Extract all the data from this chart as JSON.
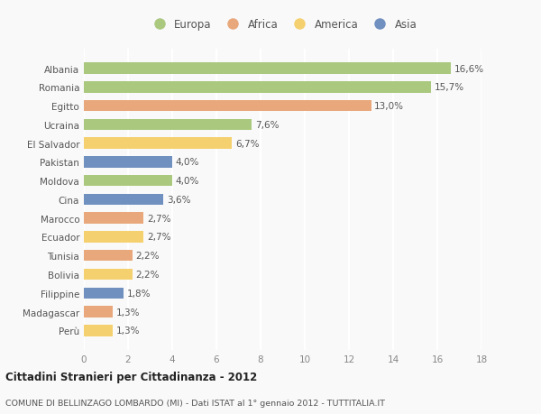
{
  "countries": [
    "Albania",
    "Romania",
    "Egitto",
    "Ucraina",
    "El Salvador",
    "Pakistan",
    "Moldova",
    "Cina",
    "Marocco",
    "Ecuador",
    "Tunisia",
    "Bolivia",
    "Filippine",
    "Madagascar",
    "Perù"
  ],
  "values": [
    16.6,
    15.7,
    13.0,
    7.6,
    6.7,
    4.0,
    4.0,
    3.6,
    2.7,
    2.7,
    2.2,
    2.2,
    1.8,
    1.3,
    1.3
  ],
  "labels": [
    "16,6%",
    "15,7%",
    "13,0%",
    "7,6%",
    "6,7%",
    "4,0%",
    "4,0%",
    "3,6%",
    "2,7%",
    "2,7%",
    "2,2%",
    "2,2%",
    "1,8%",
    "1,3%",
    "1,3%"
  ],
  "continents": [
    "Europa",
    "Europa",
    "Africa",
    "Europa",
    "America",
    "Asia",
    "Europa",
    "Asia",
    "Africa",
    "America",
    "Africa",
    "America",
    "Asia",
    "Africa",
    "America"
  ],
  "colors": {
    "Europa": "#aac97f",
    "Africa": "#e8a87c",
    "America": "#f5d06e",
    "Asia": "#7090c0"
  },
  "legend_order": [
    "Europa",
    "Africa",
    "America",
    "Asia"
  ],
  "title_bold": "Cittadini Stranieri per Cittadinanza - 2012",
  "subtitle": "COMUNE DI BELLINZAGO LOMBARDO (MI) - Dati ISTAT al 1° gennaio 2012 - TUTTITALIA.IT",
  "xlim": [
    0,
    18
  ],
  "xticks": [
    0,
    2,
    4,
    6,
    8,
    10,
    12,
    14,
    16,
    18
  ],
  "background_color": "#f9f9f9",
  "grid_color": "#ffffff",
  "bar_height": 0.6
}
